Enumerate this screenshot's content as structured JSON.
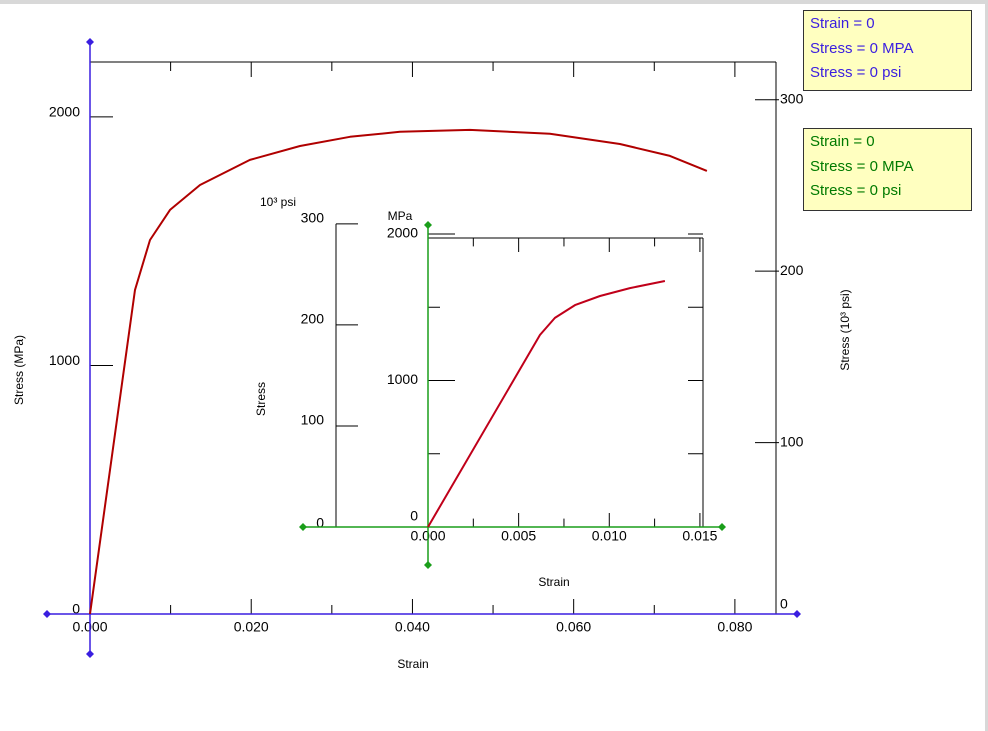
{
  "chart_data": [
    {
      "type": "line",
      "x_label": "Strain",
      "y_label": "Stress (MPa)",
      "y2_label": "Stress (10³ psi)",
      "x": [
        0,
        0.00558,
        0.00744,
        0.00992,
        0.01364,
        0.01984,
        0.02605,
        0.03225,
        0.03845,
        0.04713,
        0.05705,
        0.06574,
        0.07194,
        0.07653
      ],
      "values": [
        0,
        1304,
        1505,
        1626,
        1726,
        1827,
        1883,
        1920,
        1940,
        1948,
        1932,
        1891,
        1843,
        1783
      ],
      "color": "#b00000",
      "xlim": [
        0,
        0.0851
      ],
      "ylim": [
        0,
        2221
      ],
      "y2lim": [
        0,
        322
      ],
      "xticks": [
        {
          "value": 0,
          "label": "0.000"
        },
        {
          "value": 0.02,
          "label": "0.020"
        },
        {
          "value": 0.04,
          "label": "0.040"
        },
        {
          "value": 0.06,
          "label": "0.060"
        },
        {
          "value": 0.08,
          "label": "0.080"
        }
      ],
      "xminor_ticks": [
        0.01,
        0.03,
        0.05,
        0.07
      ],
      "yticks": [
        0,
        1000,
        2000
      ],
      "y2ticks": [
        0,
        100,
        200,
        300
      ],
      "axis_color": "#3a1ee0"
    },
    {
      "type": "line",
      "x_label": "Strain",
      "y_label": "Stress",
      "y_unit": "MPa",
      "y2_unit": "10³ psi",
      "x": [
        0,
        0.00618,
        0.007,
        0.00811,
        0.00949,
        0.01114,
        0.01307
      ],
      "values": [
        0,
        1311,
        1427,
        1515,
        1577,
        1631,
        1679
      ],
      "color": "#c0001a",
      "xlim": [
        0,
        0.01517
      ],
      "ylim": [
        0,
        2000
      ],
      "y2lim": [
        0,
        290
      ],
      "xticks": [
        {
          "value": 0,
          "label": "0.000"
        },
        {
          "value": 0.005,
          "label": "0.005"
        },
        {
          "value": 0.01,
          "label": "0.010"
        },
        {
          "value": 0.015,
          "label": "0.015"
        }
      ],
      "xminor_ticks": [
        0.0025,
        0.0075,
        0.0125
      ],
      "yticks": [
        0,
        1000,
        2000
      ],
      "yminor_ticks": [
        500,
        1500
      ],
      "y2ticks": [
        0,
        100,
        200,
        300
      ],
      "axis_color": "#1a9e1a"
    }
  ],
  "readouts": [
    {
      "color": "#3a1ee0",
      "lines": [
        "Strain = 0",
        "Stress = 0 MPA",
        "Stress = 0 psi"
      ]
    },
    {
      "color": "#007a00",
      "lines": [
        "Strain = 0",
        "Stress = 0 MPA",
        "Stress = 0 psi"
      ]
    }
  ]
}
